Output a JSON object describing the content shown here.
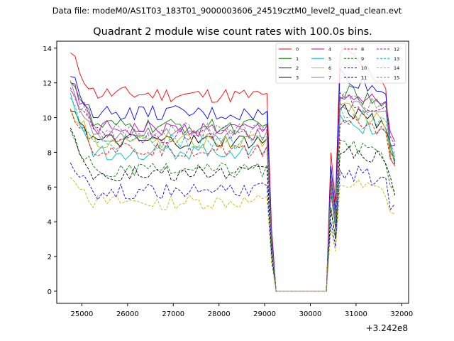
{
  "header": {
    "suptitle": "Data file: modeM0/AS1T03_183T01_9000003606_24519cztM0_level2_quad_clean.evt"
  },
  "chart_data": {
    "type": "line",
    "title": "Quadrant 2 module wise count rates with 100.0s bins.",
    "xlabel": "",
    "ylabel": "",
    "offset_text": "+3.242e8",
    "xlim": [
      24450,
      32150
    ],
    "ylim": [
      -0.7,
      14.4
    ],
    "x_ticks": [
      25000,
      26000,
      27000,
      28000,
      29000,
      30000,
      31000,
      32000
    ],
    "x_tick_labels": [
      "25000",
      "26000",
      "27000",
      "28000",
      "29000",
      "30000",
      "31000",
      "32000"
    ],
    "y_ticks": [
      0,
      2,
      4,
      6,
      8,
      10,
      12,
      14
    ],
    "y_tick_labels": [
      "0",
      "2",
      "4",
      "6",
      "8",
      "10",
      "12",
      "14"
    ],
    "legend_position": "upper right",
    "x_start": 24750,
    "bin_width": 100,
    "n_points": 72,
    "segments": {
      "active1_last": 29050,
      "drop_bin": 29150,
      "gap_start": 29200,
      "gap_end": 30350,
      "rise_bin": 30450,
      "spike_bin": 30500,
      "recover_bin": 30550,
      "active2_first": 30650
    },
    "series": [
      {
        "name": "0",
        "color": "#ff0000",
        "dashed": false,
        "level": 11.4,
        "start": 13.6,
        "end": 11.0,
        "final": 7.2
      },
      {
        "name": "1",
        "color": "#008000",
        "dashed": false,
        "level": 9.5,
        "start": 12.4,
        "end": 9.4,
        "final": 8.0
      },
      {
        "name": "2",
        "color": "#0000ff",
        "dashed": false,
        "level": 10.3,
        "start": 12.3,
        "end": 10.0,
        "final": 8.4
      },
      {
        "name": "3",
        "color": "#000000",
        "dashed": false,
        "level": 8.6,
        "start": 10.8,
        "end": 8.6,
        "final": 7.8
      },
      {
        "name": "4",
        "color": "#bf00bf",
        "dashed": false,
        "level": 9.4,
        "start": 12.0,
        "end": 9.2,
        "final": 8.6
      },
      {
        "name": "5",
        "color": "#00bfbf",
        "dashed": false,
        "level": 8.0,
        "start": 11.0,
        "end": 8.2,
        "final": 8.0
      },
      {
        "name": "6",
        "color": "#bfbf00",
        "dashed": false,
        "level": 8.7,
        "start": 10.6,
        "end": 8.4,
        "final": 7.6
      },
      {
        "name": "7",
        "color": "#808080",
        "dashed": false,
        "level": 9.0,
        "start": 11.8,
        "end": 9.0,
        "final": 8.2
      },
      {
        "name": "8",
        "color": "#ff0000",
        "dashed": true,
        "level": 8.2,
        "start": 10.6,
        "end": 8.0,
        "final": 7.6
      },
      {
        "name": "9",
        "color": "#008000",
        "dashed": true,
        "level": 6.9,
        "start": 9.0,
        "end": 7.2,
        "final": 6.2
      },
      {
        "name": "10",
        "color": "#0000ff",
        "dashed": true,
        "level": 5.7,
        "start": 7.6,
        "end": 6.0,
        "final": 5.0
      },
      {
        "name": "11",
        "color": "#000000",
        "dashed": true,
        "level": 6.7,
        "start": 9.2,
        "end": 7.0,
        "final": 6.0
      },
      {
        "name": "12",
        "color": "#bf00bf",
        "dashed": true,
        "level": 9.0,
        "start": 12.0,
        "end": 9.0,
        "final": 8.4
      },
      {
        "name": "13",
        "color": "#00bfbf",
        "dashed": true,
        "level": 8.6,
        "start": 11.0,
        "end": 8.6,
        "final": 8.0
      },
      {
        "name": "14",
        "color": "#bfbf00",
        "dashed": true,
        "level": 5.1,
        "start": 6.9,
        "end": 5.2,
        "final": 4.4
      },
      {
        "name": "15",
        "color": "#808080",
        "dashed": true,
        "level": 9.3,
        "start": 11.5,
        "end": 9.2,
        "final": 8.4
      }
    ]
  }
}
